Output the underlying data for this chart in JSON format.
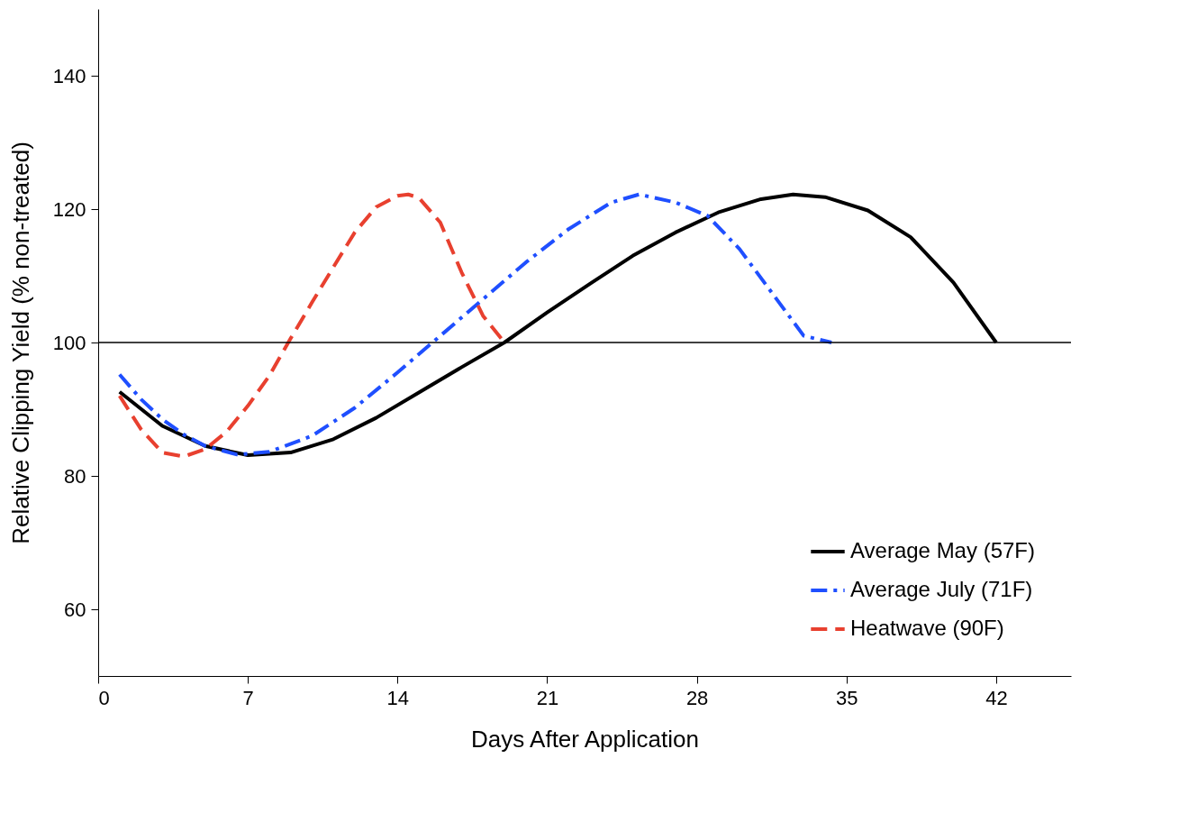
{
  "chart_data": {
    "type": "line",
    "xlabel": "Days After Application",
    "ylabel": "Relative Clipping Yield (% non-treated)",
    "xlim": [
      0,
      45.5
    ],
    "ylim": [
      50,
      150
    ],
    "xticks": [
      0,
      7,
      14,
      21,
      28,
      35,
      42
    ],
    "yticks": [
      60,
      80,
      100,
      120,
      140
    ],
    "grid": false,
    "legend": "bottom right",
    "marker": "none",
    "ref_lines": [
      {
        "axis": "y",
        "value": 100,
        "color": "#000000"
      }
    ],
    "series": [
      {
        "name": "Average May (57F)",
        "color": "#000000",
        "line_style": "solid",
        "x": [
          1,
          3,
          5,
          7,
          9,
          11,
          13,
          15,
          17,
          19,
          21,
          23,
          25,
          27,
          29,
          31,
          32.5,
          34,
          36,
          38,
          40,
          42
        ],
        "values": [
          92.6,
          87.5,
          84.5,
          83.1,
          83.5,
          85.5,
          88.7,
          92.5,
          96.3,
          100,
          104.5,
          108.8,
          113,
          116.5,
          119.5,
          121.5,
          122.2,
          121.8,
          119.8,
          115.8,
          109,
          100
        ]
      },
      {
        "name": "Average July (71F)",
        "color": "#1f4fff",
        "line_style": "dashdot",
        "x": [
          1,
          2,
          3,
          4,
          5,
          6.5,
          8,
          10,
          12,
          14,
          16,
          18,
          20,
          22,
          24,
          25.3,
          27,
          28.5,
          30,
          31.5,
          33,
          34.3
        ],
        "values": [
          95.2,
          91.5,
          88.5,
          86.2,
          84.5,
          83.2,
          83.6,
          86,
          90.2,
          95.5,
          101,
          106.5,
          112,
          117,
          121,
          122.2,
          121,
          119,
          114,
          107.5,
          101,
          100
        ]
      },
      {
        "name": "Heatwave (90F)",
        "color": "#e8402f",
        "line_style": "dashed",
        "x": [
          1,
          2,
          3,
          4,
          5,
          6,
          7,
          8,
          9,
          10,
          11,
          12,
          13,
          14,
          14.5,
          15,
          16,
          17,
          18,
          19
        ],
        "values": [
          92,
          87,
          83.5,
          82.9,
          84,
          86.6,
          90.5,
          95,
          100.6,
          106,
          111.3,
          116.5,
          120.3,
          122,
          122.2,
          121.7,
          118,
          110.5,
          104,
          100
        ]
      }
    ]
  }
}
